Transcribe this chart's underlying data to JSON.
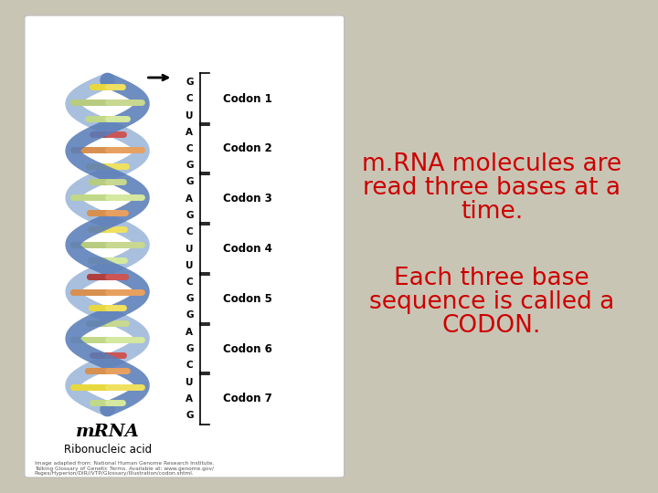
{
  "bg_color": "#c9c5b5",
  "card_bg": "#ffffff",
  "text1_line1": "m.RNA molecules are",
  "text1_line2": "read three bases at a",
  "text1_line3": "time.",
  "text2_line1": "Each three base",
  "text2_line2": "sequence is called a",
  "text2_line3": "CODON.",
  "text_color": "#cc0000",
  "text_fontsize": 19,
  "figsize": [
    7.2,
    5.4
  ],
  "dpi": 100,
  "mrna_label": "mRNA",
  "ribonucleic_label": "Ribonucleic acid",
  "codon_labels": [
    "Codon 1",
    "Codon 2",
    "Codon 3",
    "Codon 4",
    "Codon 5",
    "Codon 6",
    "Codon 7"
  ],
  "bases_sequence": [
    "G",
    "C",
    "U",
    "A",
    "C",
    "G",
    "G",
    "A",
    "G",
    "C",
    "U",
    "U",
    "C",
    "G",
    "G",
    "A",
    "G",
    "C",
    "U",
    "A",
    "G"
  ],
  "citation": "Image adapted from: National Human Genome Research Institute.\nTalking Glossary of Genetic Terms. Available at: www.genome.gov/\nPages/Hyperion/DIR//VTP/Glossary/Illustration/codon.shtml.",
  "helix_color_front": "#5a7db8",
  "helix_color_back": "#7a9dcc",
  "rung_colors": [
    "#d4e8a0",
    "#f0e060",
    "#e8a060",
    "#cc5555",
    "#d4e8a0",
    "#c8d890",
    "#f0e060",
    "#e8a060",
    "#cc5555",
    "#d4e8a0",
    "#c8d890",
    "#f0e060",
    "#e8a060",
    "#d4e8a0",
    "#c8d890",
    "#f0e060",
    "#e8a060",
    "#cc5555",
    "#d4e8a0",
    "#c8d890",
    "#f0e060"
  ]
}
